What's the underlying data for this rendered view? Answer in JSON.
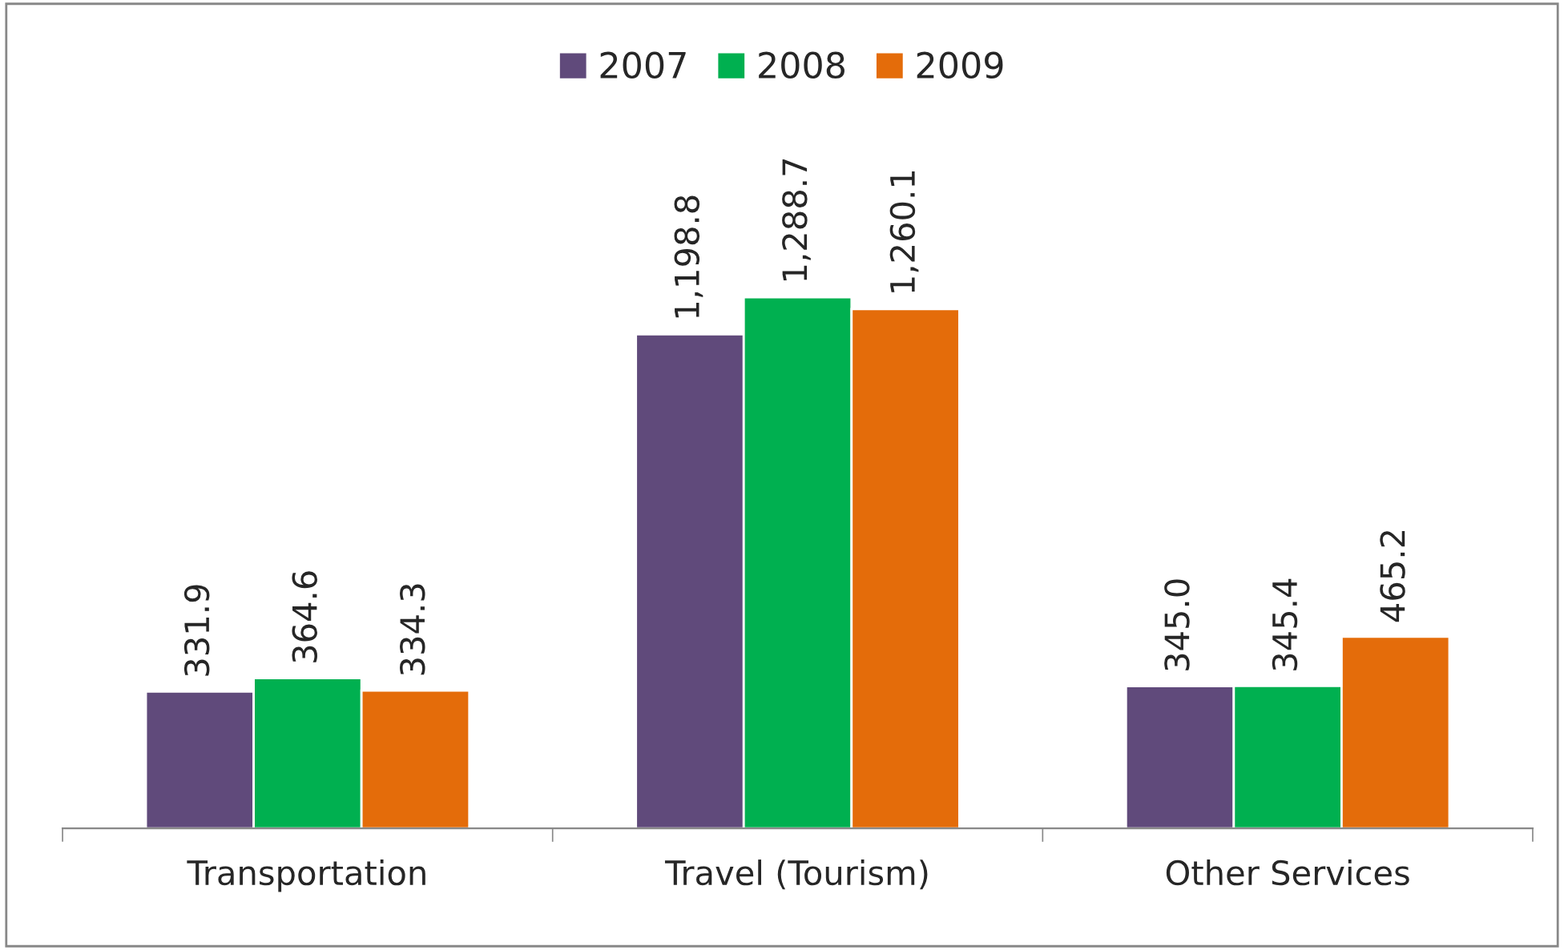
{
  "chart_data": {
    "type": "bar",
    "categories": [
      "Transportation",
      "Travel (Tourism)",
      "Other Services"
    ],
    "series": [
      {
        "name": "2007",
        "color": "#604a7b",
        "values": [
          331.9,
          1198.8,
          345.0
        ],
        "value_labels": [
          "331.9",
          "1,198.8",
          "345.0"
        ]
      },
      {
        "name": "2008",
        "color": "#00b050",
        "values": [
          364.6,
          1288.7,
          345.4
        ],
        "value_labels": [
          "364.6",
          "1,288.7",
          "345.4"
        ]
      },
      {
        "name": "2009",
        "color": "#e46c0a",
        "values": [
          334.3,
          1260.1,
          465.2
        ],
        "value_labels": [
          "334.3",
          "1,260.1",
          "465.2"
        ]
      }
    ],
    "tick_labels": "x",
    "legend": "top",
    "grid": false
  }
}
